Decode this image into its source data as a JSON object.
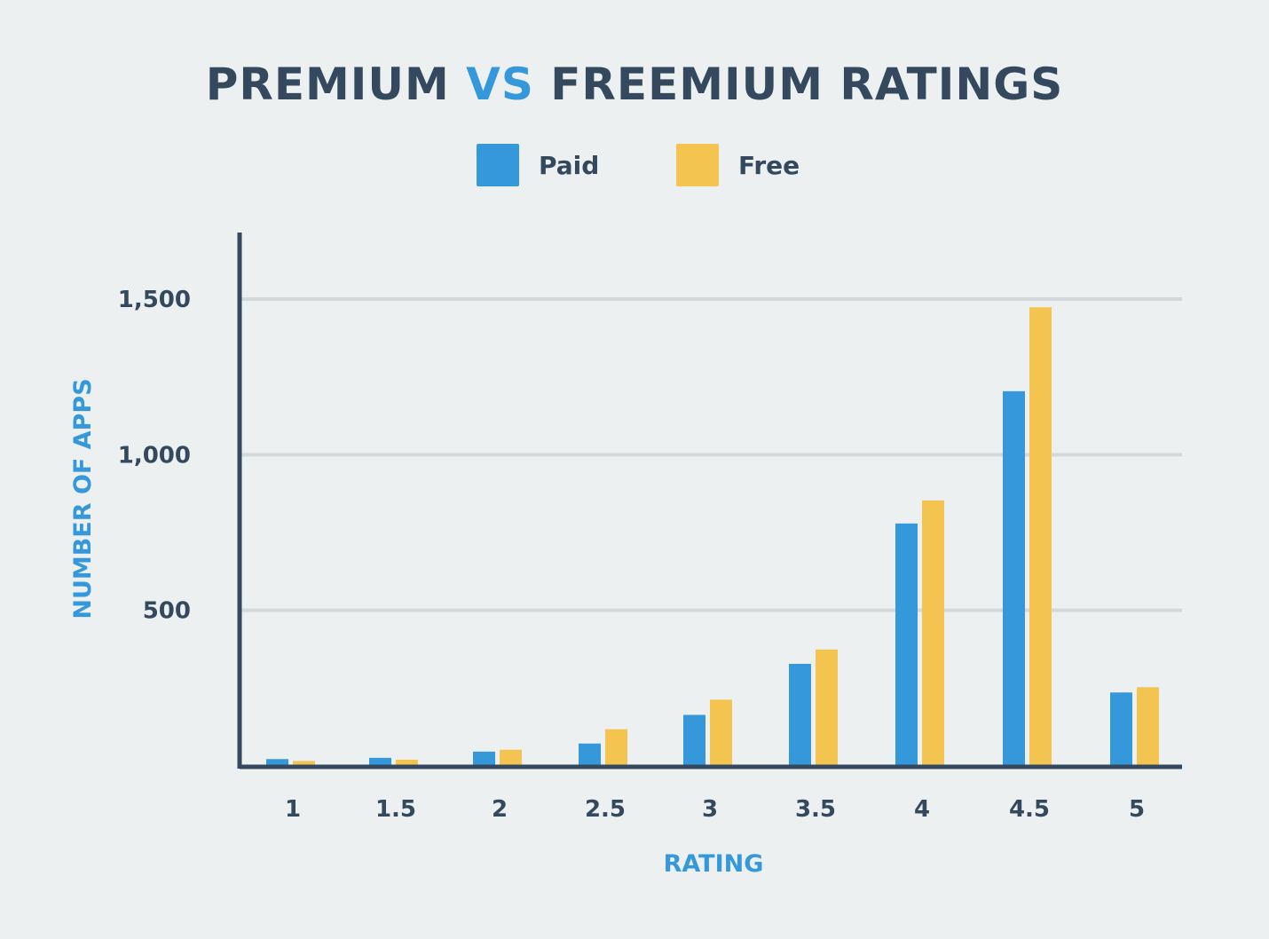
{
  "chart_data": {
    "type": "bar",
    "title_parts": [
      "PREMIUM ",
      "VS",
      " FREEMIUM RATINGS"
    ],
    "xlabel": "RATING",
    "ylabel": "NUMBER OF APPS",
    "categories": [
      "1",
      "1.5",
      "2",
      "2.5",
      "3",
      "3.5",
      "4",
      "4.5",
      "5"
    ],
    "series": [
      {
        "name": "Paid",
        "color": "#3498db",
        "values": [
          22,
          26,
          46,
          72,
          164,
          328,
          779,
          1204,
          236
        ]
      },
      {
        "name": "Free",
        "color": "#f4c451",
        "values": [
          16,
          20,
          52,
          118,
          213,
          374,
          853,
          1474,
          253
        ]
      }
    ],
    "ylim": [
      0,
      1700
    ],
    "yticks": [
      500,
      1000,
      1500
    ],
    "ytick_labels": [
      "500",
      "1,000",
      "1,500"
    ],
    "grid": true,
    "legend_position": "top-center"
  }
}
